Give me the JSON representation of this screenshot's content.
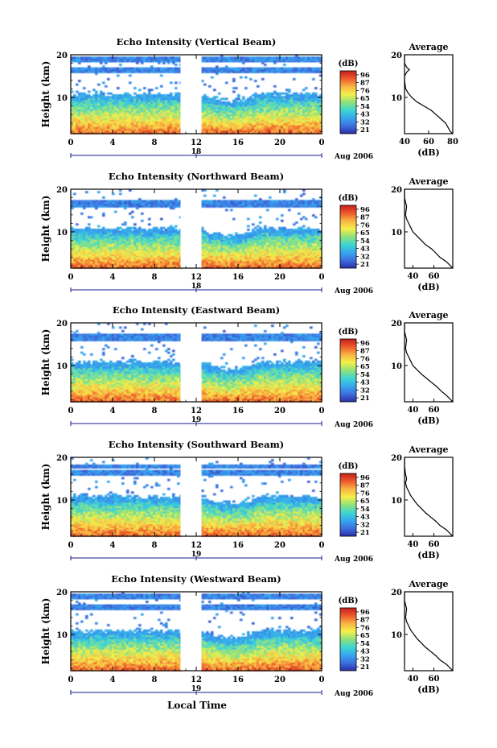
{
  "figure": {
    "xaxis_common_label": "Local Time",
    "date_label_top": "Aug 2006",
    "date_label": "Aug 2006",
    "colorbar_unit_label": "(dB)",
    "profile_title": "Average",
    "profile_xlabel": "(dB)"
  },
  "chart_data": [
    {
      "type": "heatmap",
      "title": "Echo Intensity (Vertical Beam)",
      "ylabel": "Height (km)",
      "x_ticks": [
        "0",
        "4",
        "8",
        "12",
        "16",
        "20",
        "0"
      ],
      "day_labels": [
        "18"
      ],
      "y_ticks": [
        "10",
        "20"
      ],
      "xlim": [
        0,
        24
      ],
      "ylim": [
        1.5,
        20
      ],
      "data_gap_hours": [
        10.5,
        12.5
      ],
      "colorbar_ticks": [
        "96",
        "87",
        "76",
        "65",
        "54",
        "43",
        "32",
        "21"
      ],
      "colorbar_range": [
        21,
        96
      ],
      "top_altitude_km": 19.5,
      "profile": {
        "xlim": [
          40,
          80
        ],
        "x_ticks": [
          "40",
          "60",
          "80"
        ],
        "y_ticks": [
          "10",
          "20"
        ],
        "points": [
          [
            80,
            1.5
          ],
          [
            78,
            2
          ],
          [
            76,
            3
          ],
          [
            74,
            4
          ],
          [
            70,
            5
          ],
          [
            66,
            6
          ],
          [
            62,
            7
          ],
          [
            56,
            8
          ],
          [
            50,
            9
          ],
          [
            46,
            10
          ],
          [
            43,
            11
          ],
          [
            41,
            12
          ],
          [
            40,
            14
          ],
          [
            40,
            15
          ],
          [
            42,
            16
          ],
          [
            44,
            16.5
          ],
          [
            42,
            17
          ],
          [
            40,
            18
          ],
          [
            40,
            20
          ]
        ]
      }
    },
    {
      "type": "heatmap",
      "title": "Echo Intensity (Northward Beam)",
      "ylabel": "Height (km)",
      "x_ticks": [
        "0",
        "4",
        "8",
        "12",
        "16",
        "20",
        "0"
      ],
      "day_labels": [
        "18"
      ],
      "y_ticks": [
        "10",
        "20"
      ],
      "xlim": [
        0,
        24
      ],
      "ylim": [
        1.5,
        20
      ],
      "data_gap_hours": [
        10.5,
        12.5
      ],
      "colorbar_ticks": [
        "96",
        "87",
        "76",
        "65",
        "54",
        "43",
        "32",
        "21"
      ],
      "colorbar_range": [
        21,
        96
      ],
      "top_altitude_km": 17.5,
      "profile": {
        "xlim": [
          32,
          78
        ],
        "x_ticks": [
          "40",
          "60"
        ],
        "y_ticks": [
          "10",
          "20"
        ],
        "points": [
          [
            78,
            1.5
          ],
          [
            76,
            2
          ],
          [
            72,
            3
          ],
          [
            66,
            4
          ],
          [
            62,
            5
          ],
          [
            58,
            6
          ],
          [
            52,
            7
          ],
          [
            48,
            8
          ],
          [
            44,
            9
          ],
          [
            40,
            10
          ],
          [
            38,
            11
          ],
          [
            36,
            12
          ],
          [
            34,
            13
          ],
          [
            33,
            14
          ],
          [
            34,
            16
          ],
          [
            33,
            17
          ],
          [
            32,
            18
          ],
          [
            32,
            20
          ]
        ]
      }
    },
    {
      "type": "heatmap",
      "title": "Echo Intensity (Eastward Beam)",
      "ylabel": "Height (km)",
      "x_ticks": [
        "0",
        "4",
        "8",
        "12",
        "16",
        "20",
        "0"
      ],
      "day_labels": [
        "19"
      ],
      "y_ticks": [
        "10",
        "20"
      ],
      "xlim": [
        0,
        24
      ],
      "ylim": [
        1.5,
        20
      ],
      "data_gap_hours": [
        10.5,
        12.5
      ],
      "colorbar_ticks": [
        "96",
        "87",
        "76",
        "65",
        "54",
        "43",
        "32",
        "21"
      ],
      "colorbar_range": [
        21,
        96
      ],
      "top_altitude_km": 17.5,
      "profile": {
        "xlim": [
          32,
          78
        ],
        "x_ticks": [
          "40",
          "60"
        ],
        "y_ticks": [
          "10",
          "20"
        ],
        "points": [
          [
            78,
            1.5
          ],
          [
            76,
            2
          ],
          [
            72,
            3
          ],
          [
            67,
            4
          ],
          [
            63,
            5
          ],
          [
            58,
            6
          ],
          [
            53,
            7
          ],
          [
            48,
            8
          ],
          [
            44,
            9
          ],
          [
            40,
            10
          ],
          [
            38,
            11
          ],
          [
            36,
            12
          ],
          [
            34,
            13
          ],
          [
            33,
            14
          ],
          [
            34,
            16
          ],
          [
            33,
            17
          ],
          [
            32,
            18
          ],
          [
            32,
            20
          ]
        ]
      }
    },
    {
      "type": "heatmap",
      "title": "Echo Intensity (Southward Beam)",
      "ylabel": "Height (km)",
      "x_ticks": [
        "0",
        "4",
        "8",
        "12",
        "16",
        "20",
        "0"
      ],
      "day_labels": [
        "19"
      ],
      "y_ticks": [
        "10",
        "20"
      ],
      "xlim": [
        0,
        24
      ],
      "ylim": [
        1.5,
        20
      ],
      "data_gap_hours": [
        10.5,
        12.5
      ],
      "colorbar_ticks": [
        "96",
        "87",
        "76",
        "65",
        "54",
        "43",
        "32",
        "21"
      ],
      "colorbar_range": [
        21,
        96
      ],
      "top_altitude_km": 18.5,
      "profile": {
        "xlim": [
          32,
          78
        ],
        "x_ticks": [
          "40",
          "60"
        ],
        "y_ticks": [
          "10",
          "20"
        ],
        "points": [
          [
            78,
            1.5
          ],
          [
            76,
            2
          ],
          [
            72,
            3
          ],
          [
            66,
            4
          ],
          [
            62,
            5
          ],
          [
            57,
            6
          ],
          [
            52,
            7
          ],
          [
            48,
            8
          ],
          [
            44,
            9
          ],
          [
            41,
            10
          ],
          [
            38,
            11
          ],
          [
            36,
            12
          ],
          [
            34,
            13
          ],
          [
            33,
            14
          ],
          [
            34,
            15
          ],
          [
            33,
            16
          ],
          [
            32,
            18
          ],
          [
            32,
            20
          ]
        ]
      }
    },
    {
      "type": "heatmap",
      "title": "Echo Intensity (Westward Beam)",
      "ylabel": "Height (km)",
      "x_ticks": [
        "0",
        "4",
        "8",
        "12",
        "16",
        "20",
        "0"
      ],
      "day_labels": [
        "19"
      ],
      "y_ticks": [
        "10",
        "20"
      ],
      "xlim": [
        0,
        24
      ],
      "ylim": [
        1.5,
        20
      ],
      "data_gap_hours": [
        10.5,
        12.5
      ],
      "colorbar_ticks": [
        "96",
        "87",
        "76",
        "65",
        "54",
        "43",
        "32",
        "21"
      ],
      "colorbar_range": [
        21,
        96
      ],
      "top_altitude_km": 19.5,
      "profile": {
        "xlim": [
          32,
          78
        ],
        "x_ticks": [
          "40",
          "60"
        ],
        "y_ticks": [
          "10",
          "20"
        ],
        "points": [
          [
            78,
            1.5
          ],
          [
            76,
            2
          ],
          [
            72,
            3
          ],
          [
            66,
            4
          ],
          [
            62,
            5
          ],
          [
            57,
            6
          ],
          [
            52,
            7
          ],
          [
            48,
            8
          ],
          [
            44,
            9
          ],
          [
            41,
            10
          ],
          [
            38,
            11
          ],
          [
            36,
            12
          ],
          [
            34,
            13
          ],
          [
            33,
            14
          ],
          [
            34,
            16
          ],
          [
            33,
            17
          ],
          [
            32,
            18
          ],
          [
            32,
            20
          ]
        ]
      }
    }
  ],
  "colors": {
    "scale": [
      "#2b2fa8",
      "#3f6fe0",
      "#35a8ee",
      "#3fd6d0",
      "#8fe27a",
      "#f4f04a",
      "#f9b443",
      "#ee5a2c",
      "#c41f1f"
    ],
    "gap": "#ffffff",
    "axis": "#000000",
    "profile_line": "#000000"
  }
}
